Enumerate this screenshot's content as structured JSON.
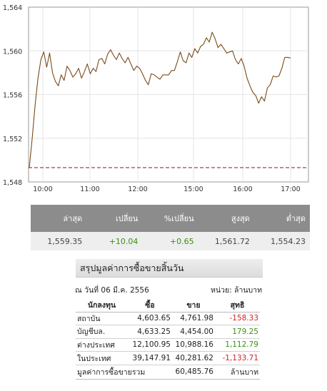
{
  "chart": {
    "y_ticks": [
      "1,564",
      "1,560",
      "1,556",
      "1,552",
      "1,548"
    ],
    "x_ticks": [
      "10:00",
      "11:00",
      "12:00",
      "15:00",
      "16:00",
      "17:00"
    ],
    "colors": {
      "line": "#7a4a1a",
      "prev_close": "#a52a2a",
      "grid": "#e4e4e4",
      "axis": "#999999"
    }
  },
  "chart_data": {
    "type": "line",
    "series": [
      {
        "values": [
          1549.3,
          1552,
          1555,
          1557.5,
          1559.2,
          1559.9,
          1558.5,
          1559.8,
          1558,
          1557.2,
          1556.8,
          1557.8,
          1557.3,
          1558.6,
          1558.2,
          1557.6,
          1557.9,
          1558.4,
          1557.5,
          1558.1,
          1558.8,
          1557.9,
          1558.4,
          1558.1,
          1559.2,
          1559.3,
          1558.8,
          1559.7,
          1560.1,
          1559.6,
          1559.2,
          1559.8,
          1559.3,
          1558.9,
          1559.4,
          1558.8,
          1558.2,
          1558.6,
          1558.4,
          1557.9,
          1557.3,
          1556.9,
          1557.9,
          1557.8,
          1557.6,
          1557.4,
          1557.8,
          1557.8,
          1557.8,
          1558.2,
          1558.2,
          1559.0,
          1559.9,
          1559.1,
          1558.9,
          1559.8,
          1559.4,
          1560.2,
          1559.8,
          1560.4,
          1560.6,
          1561.2,
          1560.8,
          1561.7,
          1561.1,
          1560.3,
          1560.6,
          1560.2,
          1559.8,
          1559.9,
          1560.0,
          1559.2,
          1558.8,
          1559.3,
          1558.6,
          1557.5,
          1556.8,
          1556.2,
          1555.9,
          1555.2,
          1555.8,
          1555.4,
          1556.6,
          1556.9,
          1557.7,
          1557.6,
          1557.7,
          1558.4,
          1559.4,
          1559.4,
          1559.35
        ],
        "note": ""
      }
    ],
    "prev_close": 1549.31,
    "ylim": [
      1548,
      1564
    ],
    "xlabels": [
      "10:00",
      "11:00",
      "12:00",
      "15:00",
      "16:00",
      "17:00"
    ],
    "grid": true
  },
  "quote": {
    "headers": [
      "ล่าสุด",
      "เปลี่ยน",
      "%เปลี่ยน",
      "สูงสุด",
      "ต่ำสุด"
    ],
    "values": [
      "1,559.35",
      "+10.04",
      "+0.65",
      "1,561.72",
      "1,554.23"
    ]
  },
  "summary": {
    "title": "สรุปมูลค่าการซื้อขายสิ้นวัน",
    "date": "ณ วันที่ 06 มี.ค. 2556",
    "unit": "หน่วย: ล้านบาท",
    "col_headers": [
      "นักลงทุน",
      "ซื้อ",
      "ขาย",
      "สุทธิ"
    ],
    "rows": [
      {
        "label": "สถาบัน",
        "buy": "4,603.65",
        "sell": "4,761.98",
        "net": "-158.33"
      },
      {
        "label": "บัญชีบล.",
        "buy": "4,633.25",
        "sell": "4,454.00",
        "net": "179.25"
      },
      {
        "label": "ต่างประเทศ",
        "buy": "12,100.95",
        "sell": "10,988.16",
        "net": "1,112.79"
      },
      {
        "label": "ในประเทศ",
        "buy": "39,147.91",
        "sell": "40,281.62",
        "net": "-1,133.71"
      }
    ],
    "total_label": "มูลค่าการซื้อขายรวม",
    "total_value": "60,485.76",
    "total_unit": "ล้านบาท"
  }
}
